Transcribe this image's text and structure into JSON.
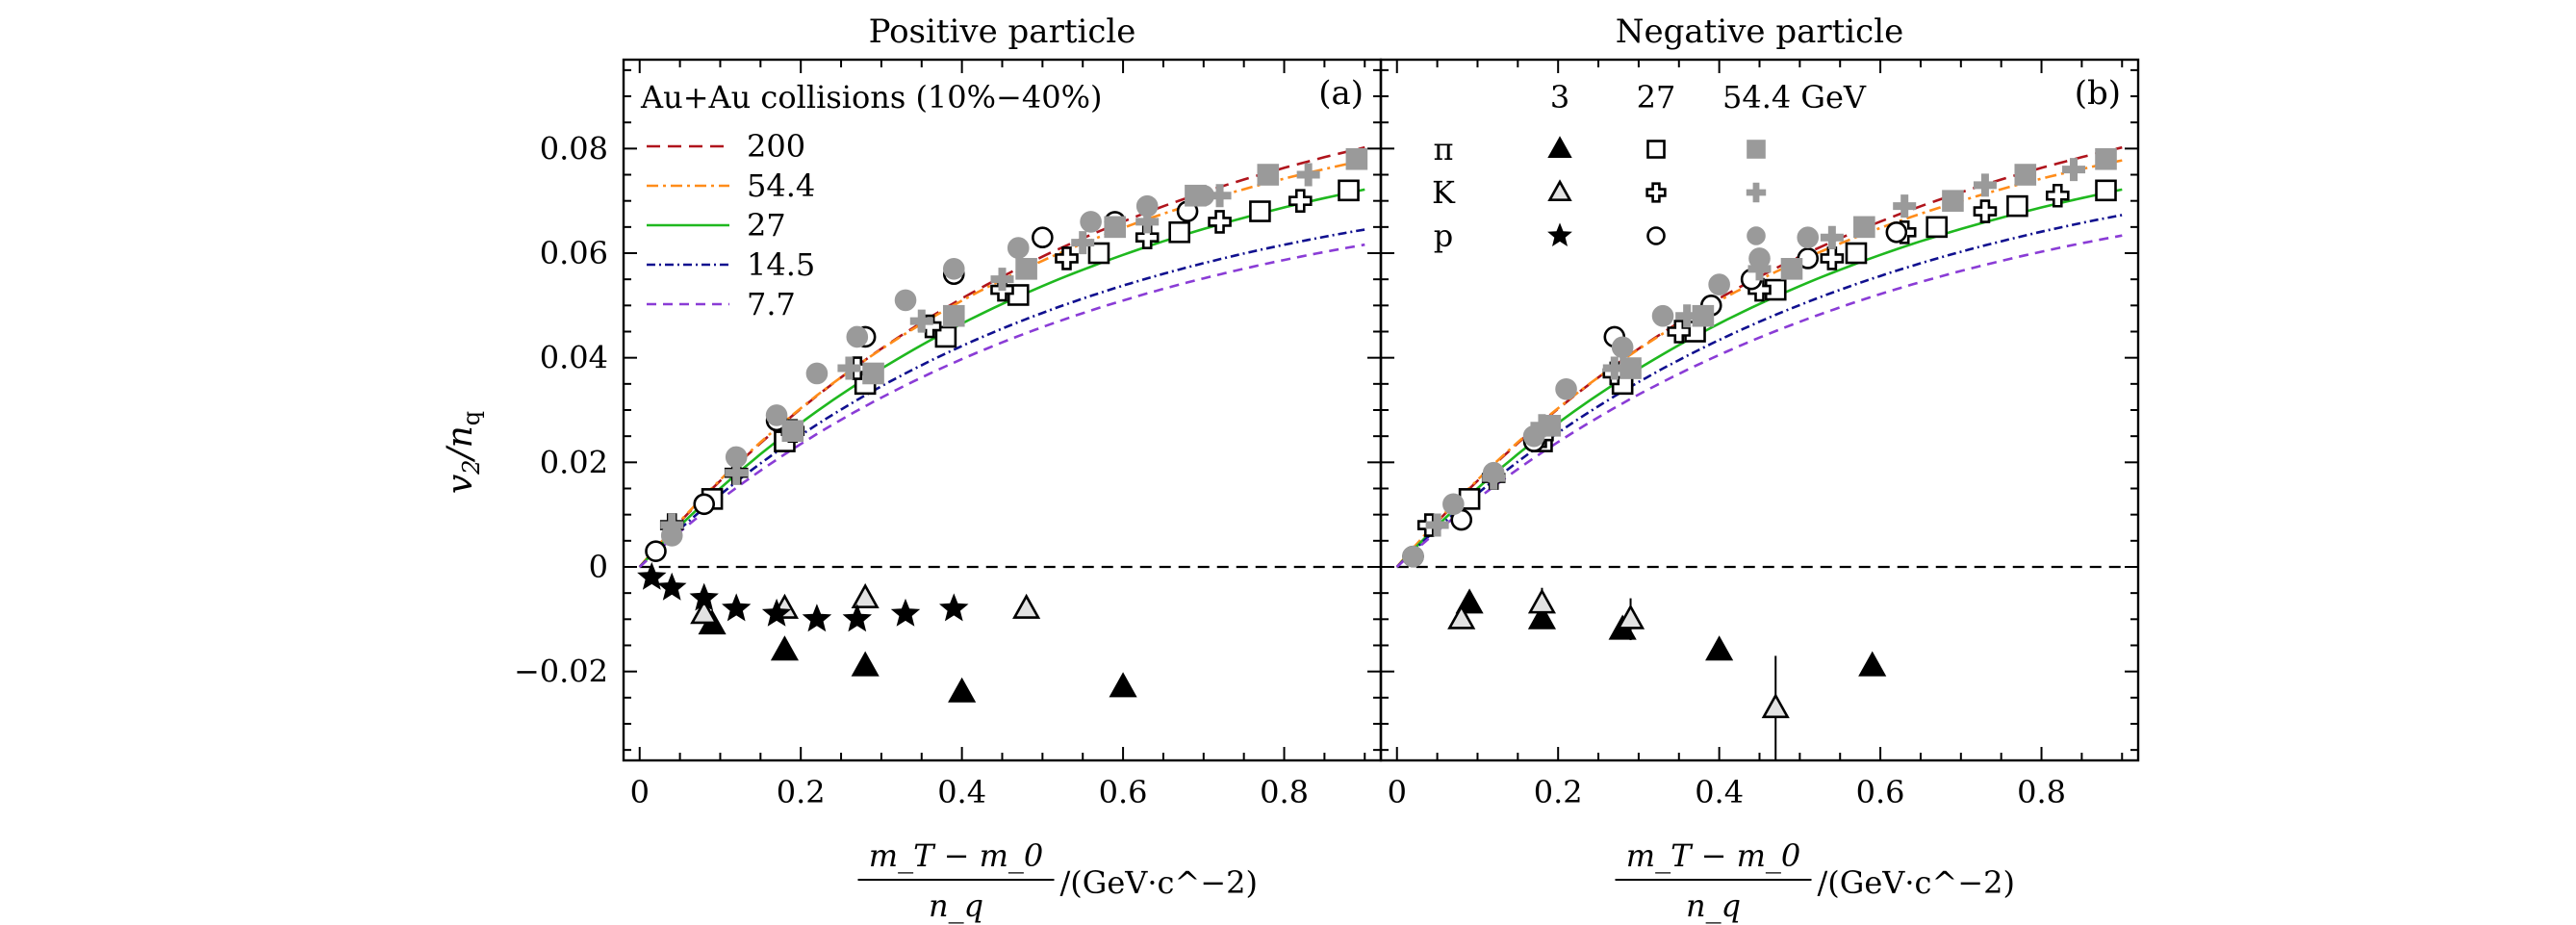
{
  "chart_data": [
    {
      "id": "a",
      "type": "scatter",
      "title": "Positive particle",
      "panel_tag": "(a)",
      "xlabel_numerator": "m_T − m_0",
      "xlabel_denominator": "n_q",
      "xlabel_unit": "/(GeV·c^−2)",
      "ylabel": "v_2/n_q",
      "xlim": [
        -0.02,
        0.92
      ],
      "ylim": [
        -0.037,
        0.097
      ],
      "xticks": [
        0,
        0.2,
        0.4,
        0.6,
        0.8
      ],
      "xtick_labels": [
        "0",
        "0.2",
        "0.4",
        "0.6",
        "0.8"
      ],
      "yticks": [
        -0.02,
        0,
        0.02,
        0.04,
        0.06,
        0.08
      ],
      "ytick_labels": [
        "−0.02",
        "0",
        "0.02",
        "0.04",
        "0.06",
        "0.08"
      ],
      "legend_title": "Au+Au collisions (10%−40%)",
      "legend_position": "top-left",
      "curves": [
        {
          "name": "200",
          "style": "dash-long",
          "color": "#b0141c",
          "A": 0.1,
          "k": 1.8
        },
        {
          "name": "54.4",
          "style": "dash-dot",
          "color": "#ff8c1a",
          "A": 0.094,
          "k": 1.95
        },
        {
          "name": "27",
          "style": "solid",
          "color": "#1fb81f",
          "A": 0.089,
          "k": 1.85
        },
        {
          "name": "14.5",
          "style": "dash-dot-dense",
          "color": "#10108f",
          "A": 0.078,
          "k": 1.95
        },
        {
          "name": "7.7",
          "style": "dash-short",
          "color": "#8a3cd6",
          "A": 0.076,
          "k": 1.85
        }
      ],
      "series": [
        {
          "energy": "3",
          "particle": "π",
          "marker": "triangle-filled",
          "x": [
            0.09,
            0.18,
            0.28,
            0.4,
            0.6
          ],
          "y": [
            -0.011,
            -0.016,
            -0.019,
            -0.024,
            -0.023
          ]
        },
        {
          "energy": "3",
          "particle": "K",
          "marker": "triangle-open",
          "x": [
            0.08,
            0.18,
            0.28,
            0.48
          ],
          "y": [
            -0.009,
            -0.008,
            -0.006,
            -0.008
          ]
        },
        {
          "energy": "3",
          "particle": "p",
          "marker": "star",
          "x": [
            0.015,
            0.04,
            0.08,
            0.12,
            0.17,
            0.22,
            0.27,
            0.33,
            0.39
          ],
          "y": [
            -0.002,
            -0.004,
            -0.006,
            -0.008,
            -0.009,
            -0.01,
            -0.01,
            -0.009,
            -0.008
          ]
        },
        {
          "energy": "27",
          "particle": "π",
          "marker": "square-open",
          "x": [
            0.09,
            0.18,
            0.28,
            0.38,
            0.47,
            0.57,
            0.67,
            0.77,
            0.88
          ],
          "y": [
            0.013,
            0.024,
            0.035,
            0.044,
            0.052,
            0.06,
            0.064,
            0.068,
            0.072
          ]
        },
        {
          "energy": "27",
          "particle": "K",
          "marker": "cross-open",
          "x": [
            0.04,
            0.12,
            0.19,
            0.27,
            0.36,
            0.45,
            0.53,
            0.63,
            0.72,
            0.82
          ],
          "y": [
            0.008,
            0.018,
            0.026,
            0.038,
            0.046,
            0.053,
            0.059,
            0.063,
            0.066,
            0.07
          ]
        },
        {
          "energy": "27",
          "particle": "p",
          "marker": "circle-open",
          "x": [
            0.02,
            0.08,
            0.17,
            0.28,
            0.39,
            0.5,
            0.59,
            0.68
          ],
          "y": [
            0.003,
            0.012,
            0.028,
            0.044,
            0.056,
            0.063,
            0.066,
            0.068
          ]
        },
        {
          "energy": "54.4",
          "particle": "π",
          "marker": "square-filled",
          "x": [
            0.19,
            0.29,
            0.39,
            0.48,
            0.59,
            0.69,
            0.78,
            0.89
          ],
          "y": [
            0.026,
            0.037,
            0.048,
            0.057,
            0.065,
            0.071,
            0.075,
            0.078
          ]
        },
        {
          "energy": "54.4",
          "particle": "K",
          "marker": "plus-filled",
          "x": [
            0.04,
            0.12,
            0.26,
            0.35,
            0.45,
            0.55,
            0.63,
            0.72,
            0.83
          ],
          "y": [
            0.008,
            0.018,
            0.038,
            0.047,
            0.055,
            0.062,
            0.066,
            0.071,
            0.075
          ]
        },
        {
          "energy": "54.4",
          "particle": "p",
          "marker": "circle-filled",
          "x": [
            0.04,
            0.12,
            0.17,
            0.22,
            0.27,
            0.33,
            0.39,
            0.47,
            0.56,
            0.63,
            0.7
          ],
          "y": [
            0.006,
            0.021,
            0.029,
            0.037,
            0.044,
            0.051,
            0.057,
            0.061,
            0.066,
            0.069,
            0.071
          ]
        }
      ]
    },
    {
      "id": "b",
      "type": "scatter",
      "title": "Negative particle",
      "panel_tag": "(b)",
      "xlabel_numerator": "m_T − m_0",
      "xlabel_denominator": "n_q",
      "xlabel_unit": "/(GeV·c^−2)",
      "xlim": [
        -0.02,
        0.92
      ],
      "ylim": [
        -0.037,
        0.097
      ],
      "xticks": [
        0,
        0.2,
        0.4,
        0.6,
        0.8
      ],
      "xtick_labels": [
        "0",
        "0.2",
        "0.4",
        "0.6",
        "0.8"
      ],
      "yticks": [
        -0.02,
        0,
        0.02,
        0.04,
        0.06,
        0.08
      ],
      "legend_header": [
        "3",
        "27",
        "54.4 GeV"
      ],
      "legend_rows": [
        "π",
        "K",
        "p"
      ],
      "legend_position": "top-left",
      "curves": [
        {
          "name": "200",
          "style": "dash-long",
          "color": "#b0141c",
          "A": 0.1,
          "k": 1.8
        },
        {
          "name": "54.4",
          "style": "dash-dot",
          "color": "#ff8c1a",
          "A": 0.094,
          "k": 1.95
        },
        {
          "name": "27",
          "style": "solid",
          "color": "#1fb81f",
          "A": 0.089,
          "k": 1.85
        },
        {
          "name": "14.5",
          "style": "dash-dot-dense",
          "color": "#10108f",
          "A": 0.083,
          "k": 1.85
        },
        {
          "name": "7.7",
          "style": "dash-short",
          "color": "#8a3cd6",
          "A": 0.079,
          "k": 1.8
        }
      ],
      "series": [
        {
          "energy": "3",
          "particle": "π",
          "marker": "triangle-filled",
          "x": [
            0.09,
            0.18,
            0.28,
            0.4,
            0.59
          ],
          "y": [
            -0.007,
            -0.01,
            -0.012,
            -0.016,
            -0.019
          ]
        },
        {
          "energy": "3",
          "particle": "K",
          "marker": "triangle-open",
          "x": [
            0.08,
            0.18,
            0.29,
            0.47
          ],
          "y": [
            -0.01,
            -0.007,
            -0.01,
            -0.027
          ],
          "yerr": [
            0.001,
            0.003,
            0.004,
            0.01
          ]
        },
        {
          "energy": "27",
          "particle": "π",
          "marker": "square-open",
          "x": [
            0.09,
            0.18,
            0.28,
            0.37,
            0.47,
            0.57,
            0.67,
            0.77,
            0.88
          ],
          "y": [
            0.013,
            0.024,
            0.035,
            0.045,
            0.053,
            0.06,
            0.065,
            0.069,
            0.072
          ]
        },
        {
          "energy": "27",
          "particle": "K",
          "marker": "cross-open",
          "x": [
            0.04,
            0.12,
            0.18,
            0.27,
            0.35,
            0.45,
            0.54,
            0.63,
            0.73,
            0.82
          ],
          "y": [
            0.008,
            0.017,
            0.025,
            0.037,
            0.045,
            0.053,
            0.059,
            0.064,
            0.068,
            0.071
          ]
        },
        {
          "energy": "27",
          "particle": "p",
          "marker": "circle-open",
          "x": [
            0.02,
            0.08,
            0.17,
            0.27,
            0.39,
            0.44,
            0.51,
            0.62
          ],
          "y": [
            0.002,
            0.009,
            0.024,
            0.044,
            0.05,
            0.055,
            0.059,
            0.064
          ]
        },
        {
          "energy": "54.4",
          "particle": "π",
          "marker": "square-filled",
          "x": [
            0.19,
            0.29,
            0.38,
            0.49,
            0.58,
            0.69,
            0.78,
            0.88
          ],
          "y": [
            0.027,
            0.038,
            0.048,
            0.057,
            0.065,
            0.07,
            0.075,
            0.078
          ]
        },
        {
          "energy": "54.4",
          "particle": "K",
          "marker": "plus-filled",
          "x": [
            0.05,
            0.12,
            0.18,
            0.27,
            0.36,
            0.45,
            0.54,
            0.63,
            0.73,
            0.84
          ],
          "y": [
            0.008,
            0.017,
            0.027,
            0.038,
            0.048,
            0.057,
            0.063,
            0.069,
            0.073,
            0.076
          ]
        },
        {
          "energy": "54.4",
          "particle": "p",
          "marker": "circle-filled",
          "x": [
            0.02,
            0.07,
            0.12,
            0.17,
            0.21,
            0.28,
            0.33,
            0.4,
            0.45,
            0.51
          ],
          "y": [
            0.002,
            0.012,
            0.018,
            0.025,
            0.034,
            0.042,
            0.048,
            0.054,
            0.059,
            0.063
          ]
        }
      ]
    }
  ]
}
